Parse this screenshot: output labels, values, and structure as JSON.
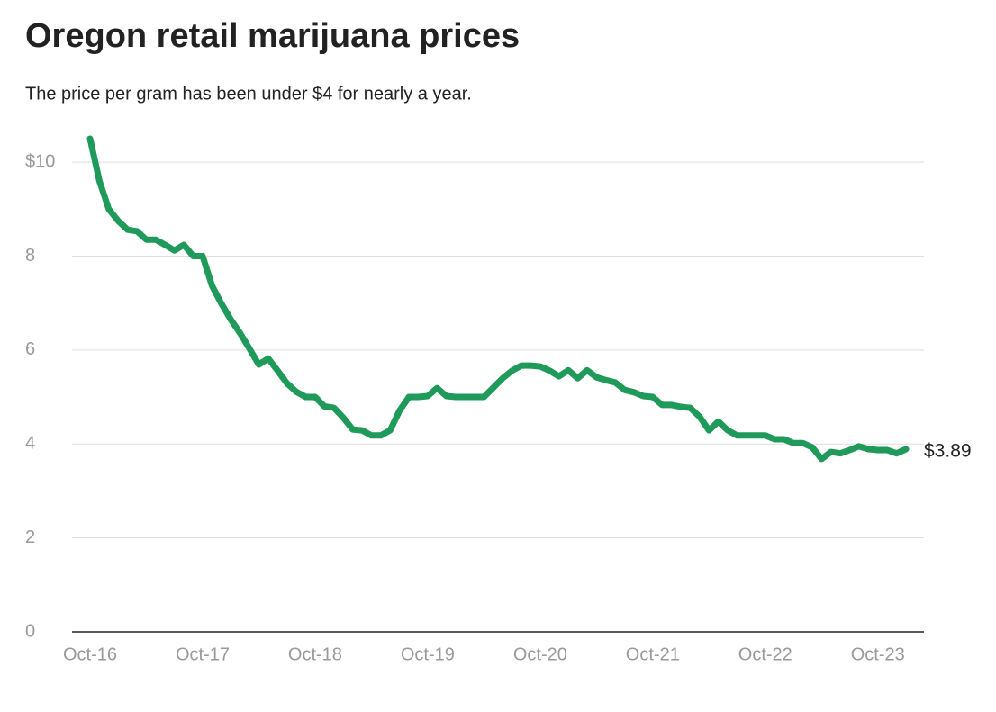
{
  "chart_data": {
    "type": "line",
    "title": "Oregon retail marijuana prices",
    "subtitle": "The price per gram has been under $4 for nearly a year.",
    "categories": [
      "Oct-16",
      null,
      null,
      null,
      null,
      null,
      null,
      null,
      null,
      null,
      null,
      null,
      "Oct-17",
      null,
      null,
      null,
      null,
      null,
      null,
      null,
      null,
      null,
      null,
      null,
      "Oct-18",
      null,
      null,
      null,
      null,
      null,
      null,
      null,
      null,
      null,
      null,
      null,
      "Oct-19",
      null,
      null,
      null,
      null,
      null,
      null,
      null,
      null,
      null,
      null,
      null,
      "Oct-20",
      null,
      null,
      null,
      null,
      null,
      null,
      null,
      null,
      null,
      null,
      null,
      "Oct-21",
      null,
      null,
      null,
      null,
      null,
      null,
      null,
      null,
      null,
      null,
      null,
      "Oct-22",
      null,
      null,
      null,
      null,
      null,
      null,
      null,
      null,
      null,
      null,
      null,
      "Oct-23",
      null,
      null,
      null
    ],
    "series": [
      {
        "color": "#1f9a5a",
        "values": [
          10.5,
          9.6,
          9.0,
          8.75,
          8.56,
          8.53,
          8.35,
          8.35,
          8.24,
          8.12,
          8.24,
          8.0,
          8.0,
          7.37,
          6.99,
          6.65,
          6.36,
          6.03,
          5.69,
          5.82,
          5.56,
          5.29,
          5.11,
          5.0,
          5.0,
          4.8,
          4.77,
          4.56,
          4.31,
          4.29,
          4.18,
          4.18,
          4.29,
          4.71,
          5.0,
          5.0,
          5.02,
          5.19,
          5.02,
          5.0,
          5.0,
          5.0,
          5.0,
          5.2,
          5.4,
          5.56,
          5.67,
          5.67,
          5.65,
          5.56,
          5.44,
          5.57,
          5.4,
          5.57,
          5.42,
          5.36,
          5.31,
          5.15,
          5.1,
          5.02,
          5.0,
          4.83,
          4.83,
          4.79,
          4.77,
          4.58,
          4.29,
          4.48,
          4.29,
          4.18,
          4.18,
          4.18,
          4.18,
          4.1,
          4.1,
          4.02,
          4.02,
          3.93,
          3.68,
          3.83,
          3.8,
          3.87,
          3.95,
          3.89,
          3.87,
          3.87,
          3.8,
          3.89
        ],
        "value_labels": [
          null,
          null,
          null,
          null,
          null,
          null,
          null,
          null,
          null,
          null,
          null,
          null,
          null,
          null,
          null,
          null,
          null,
          null,
          null,
          null,
          null,
          null,
          null,
          null,
          null,
          null,
          null,
          null,
          null,
          null,
          null,
          null,
          null,
          null,
          null,
          null,
          null,
          null,
          null,
          null,
          null,
          null,
          null,
          null,
          null,
          null,
          null,
          null,
          null,
          null,
          null,
          null,
          null,
          null,
          null,
          null,
          null,
          null,
          null,
          null,
          null,
          null,
          null,
          null,
          null,
          null,
          null,
          null,
          null,
          null,
          null,
          null,
          null,
          null,
          null,
          null,
          null,
          null,
          null,
          null,
          null,
          null,
          null,
          null,
          null,
          null,
          null,
          "$3.89"
        ]
      }
    ],
    "ylim": [
      0,
      10.5
    ],
    "yticks": [
      0,
      2,
      4,
      6,
      8,
      {
        "value": 10,
        "label": "$10"
      }
    ],
    "grid": true
  }
}
